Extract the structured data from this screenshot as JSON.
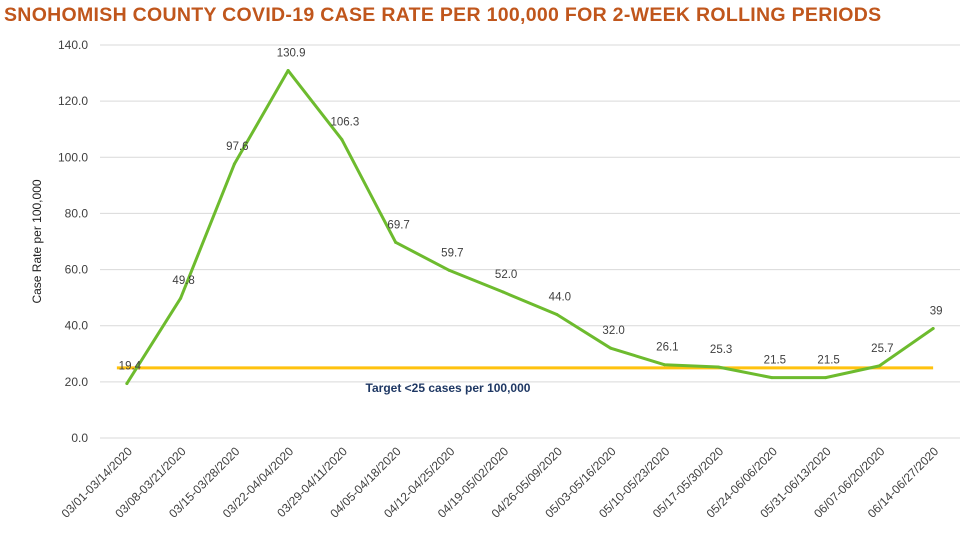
{
  "colors": {
    "title": "#c0561c",
    "series": "#6dbb2e",
    "target": "#ffc20e",
    "target_text": "#1f3864",
    "grid": "#d9d9d9"
  },
  "chart_data": {
    "type": "line",
    "title": "SNOHOMISH COUNTY COVID-19 CASE RATE PER 100,000 FOR 2-WEEK ROLLING PERIODS",
    "xlabel": "",
    "ylabel": "Case Rate per 100,000",
    "ylim": [
      0,
      140
    ],
    "yticks": [
      "0.0",
      "20.0",
      "40.0",
      "60.0",
      "80.0",
      "100.0",
      "120.0",
      "140.0"
    ],
    "grid": true,
    "categories": [
      "03/01-03/14/2020",
      "03/08-03/21/2020",
      "03/15-03/28/2020",
      "03/22-04/04/2020",
      "03/29-04/11/2020",
      "04/05-04/18/2020",
      "04/12-04/25/2020",
      "04/19-05/02/2020",
      "04/26-05/09/2020",
      "05/03-05/16/2020",
      "05/10-05/23/2020",
      "05/17-05/30/2020",
      "05/24-06/06/2020",
      "05/31-06/13/2020",
      "06/07-06/20/2020",
      "06/14-06/27/2020"
    ],
    "series": [
      {
        "name": "",
        "values": [
          19.4,
          49.8,
          97.6,
          130.9,
          106.3,
          69.7,
          59.7,
          52.0,
          44.0,
          32.0,
          26.1,
          25.3,
          21.5,
          21.5,
          25.7,
          39
        ],
        "labels": [
          "19.4",
          "49.8",
          "97.6",
          "130.9",
          "106.3",
          "69.7",
          "59.7",
          "52.0",
          "44.0",
          "32.0",
          "26.1",
          "25.3",
          "21.5",
          "21.5",
          "25.7",
          "39"
        ]
      }
    ],
    "target": {
      "value": 25,
      "label": "Target <25 cases per 100,000"
    }
  }
}
